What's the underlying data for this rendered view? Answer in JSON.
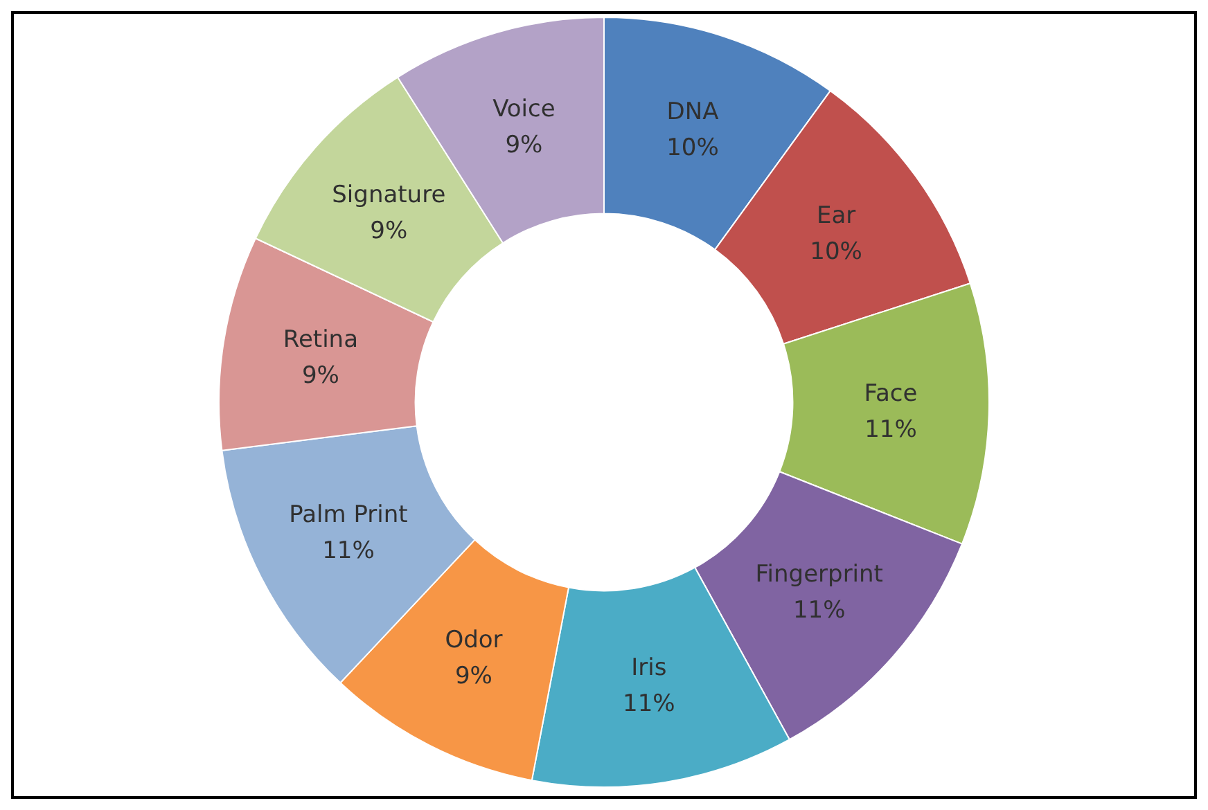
{
  "chart_data": {
    "type": "donut",
    "categories": [
      "DNA",
      "Ear",
      "Face",
      "Fingerprint",
      "Iris",
      "Odor",
      "Palm Print",
      "Retina",
      "Signature",
      "Voice"
    ],
    "values": [
      10,
      10,
      11,
      11,
      11,
      9,
      11,
      9,
      9,
      9
    ],
    "colors": [
      "#4f81bd",
      "#c0504d",
      "#9bbb59",
      "#8064a2",
      "#4bacc6",
      "#f79646",
      "#95b3d7",
      "#d99694",
      "#c3d69b",
      "#b3a2c7"
    ],
    "value_labels": [
      "10%",
      "10%",
      "11%",
      "11%",
      "11%",
      "9%",
      "11%",
      "9%",
      "9%",
      "9%"
    ],
    "legend": false
  }
}
